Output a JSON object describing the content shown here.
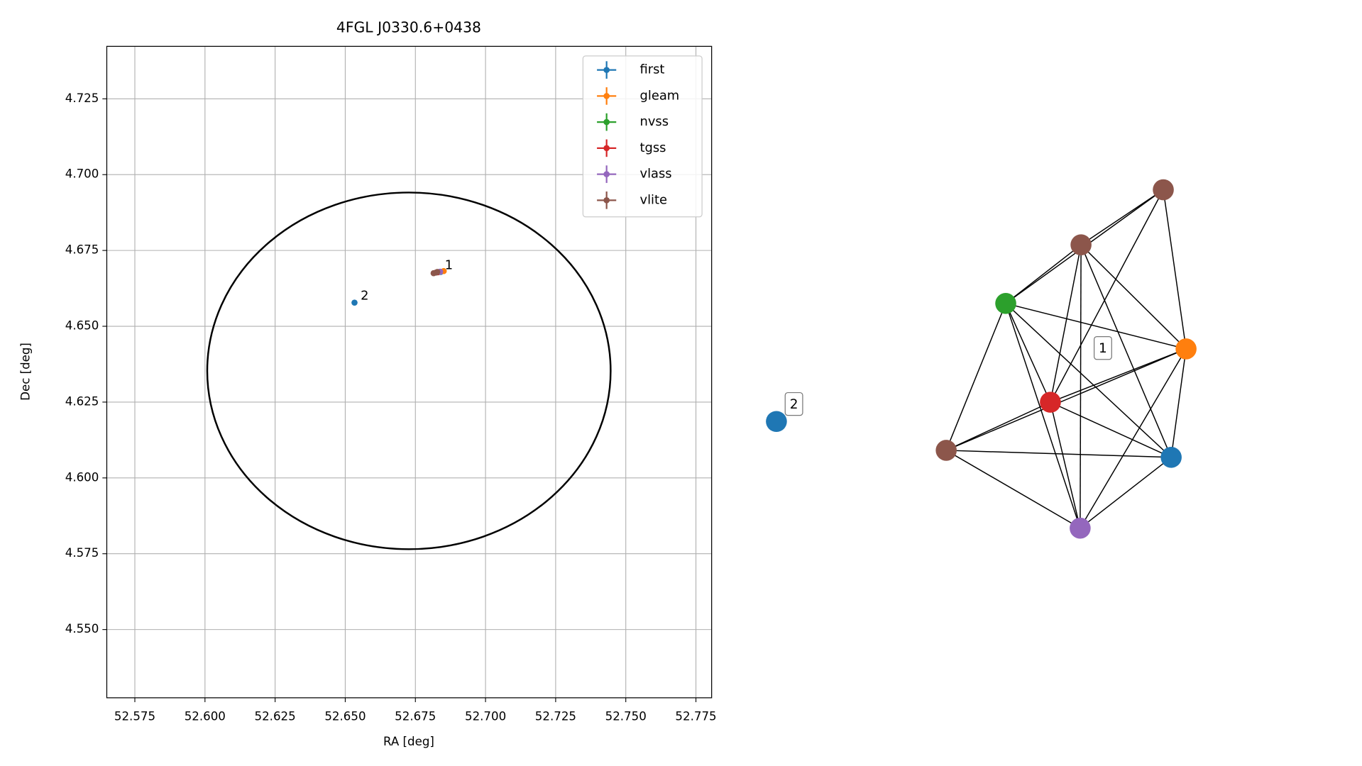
{
  "chart_data": [
    {
      "type": "scatter",
      "title": "4FGL J0330.6+0438",
      "x_label": "RA [deg]",
      "y_label": "Dec [deg]",
      "xlim": [
        52.565,
        52.7806
      ],
      "ylim": [
        4.5275,
        4.7423
      ],
      "xticks": [
        52.575,
        {
          "value": 52.6,
          "label": "52.600"
        },
        52.625,
        {
          "value": 52.65,
          "label": "52.650"
        },
        52.675,
        {
          "value": 52.7,
          "label": "52.700"
        },
        52.725,
        {
          "value": 52.75,
          "label": "52.750"
        },
        52.775
      ],
      "yticks": [
        4.725,
        {
          "value": 4.7,
          "label": "4.700"
        },
        4.675,
        {
          "value": 4.65,
          "label": "4.650"
        },
        4.625,
        {
          "value": 4.6,
          "label": "4.600"
        },
        4.575,
        {
          "value": 4.55,
          "label": "4.550"
        }
      ],
      "grid": true,
      "legend": "upper right",
      "series": [
        {
          "name": "first",
          "color": "#1f77b4",
          "x": [
            52.6533,
            52.684
          ],
          "values": [
            4.6578,
            4.6679
          ]
        },
        {
          "name": "gleam",
          "color": "#ff7f0e",
          "x": [
            52.6851
          ],
          "values": [
            4.6682
          ]
        },
        {
          "name": "nvss",
          "color": "#2ca02c",
          "x": [
            52.6835
          ],
          "values": [
            4.6679
          ]
        },
        {
          "name": "tgss",
          "color": "#d62728",
          "x": [
            52.683
          ],
          "values": [
            4.6678
          ]
        },
        {
          "name": "vlass",
          "color": "#9467bd",
          "x": [
            52.6838
          ],
          "values": [
            4.668
          ]
        },
        {
          "name": "vlite",
          "color": "#8c564b",
          "x": [
            52.6815,
            52.6828,
            52.6823
          ],
          "values": [
            4.6675,
            4.6679,
            4.6677
          ]
        }
      ],
      "ellipse": {
        "center": [
          52.6727,
          4.6353
        ],
        "semi_axes": [
          0.0719,
          0.0588
        ],
        "color": "#000000"
      },
      "annotations": [
        {
          "text": "1",
          "x": 52.6855,
          "y": 4.67
        },
        {
          "text": "2",
          "x": 52.6555,
          "y": 4.66
        }
      ]
    },
    {
      "type": "network",
      "nodes": [
        {
          "color": "#8c564b"
        },
        {
          "color": "#8c564b"
        },
        {
          "color": "#2ca02c"
        },
        {
          "color": "#ff7f0e"
        },
        {
          "color": "#d62728"
        },
        {
          "color": "#8c564b"
        },
        {
          "color": "#1f77b4"
        },
        {
          "color": "#9467bd"
        },
        {
          "color": "#1f77b4"
        }
      ],
      "edges": [
        [
          0,
          1
        ],
        [
          0,
          2
        ],
        [
          0,
          3
        ],
        [
          0,
          4
        ],
        [
          1,
          2
        ],
        [
          1,
          3
        ],
        [
          1,
          4
        ],
        [
          1,
          6
        ],
        [
          1,
          7
        ],
        [
          2,
          3
        ],
        [
          2,
          4
        ],
        [
          2,
          5
        ],
        [
          2,
          6
        ],
        [
          2,
          7
        ],
        [
          3,
          4
        ],
        [
          3,
          5
        ],
        [
          3,
          6
        ],
        [
          3,
          7
        ],
        [
          4,
          5
        ],
        [
          4,
          6
        ],
        [
          4,
          7
        ],
        [
          5,
          6
        ],
        [
          5,
          7
        ],
        [
          6,
          7
        ]
      ],
      "labels": [
        "1",
        "2"
      ]
    }
  ]
}
